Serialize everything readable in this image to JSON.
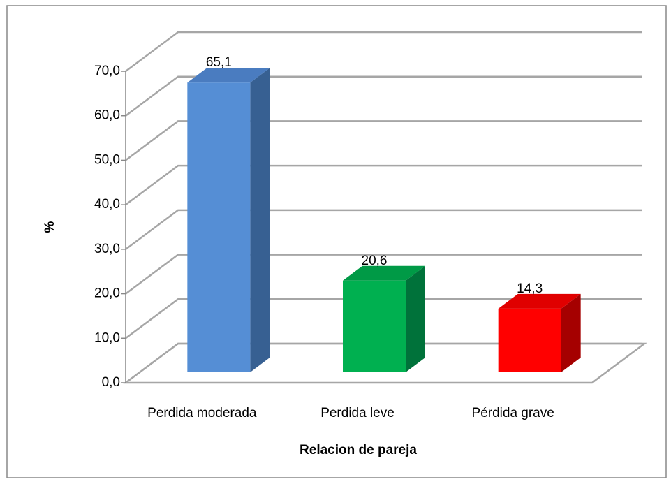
{
  "chart_data": {
    "type": "bar3d",
    "categories": [
      "Perdida moderada",
      "Perdida leve",
      "Pérdida grave"
    ],
    "values": [
      65.1,
      20.6,
      14.3
    ],
    "value_labels": [
      "65,1",
      "20,6",
      "14,3"
    ],
    "colors": [
      "#558ed5",
      "#00b050",
      "#ff0000"
    ],
    "side_colors": [
      "#376092",
      "#00723a",
      "#a50000"
    ],
    "top_colors": [
      "#4a7cc0",
      "#009a46",
      "#e00000"
    ],
    "y_label": "%",
    "x_label": "Relacion de pareja",
    "ylim": [
      0,
      70
    ],
    "yticks": [
      {
        "value": 0,
        "label": "0,0"
      },
      {
        "value": 10,
        "label": "10,0"
      },
      {
        "value": 20,
        "label": "20,0"
      },
      {
        "value": 30,
        "label": "30,0"
      },
      {
        "value": 40,
        "label": "40,0"
      },
      {
        "value": 50,
        "label": "50,0"
      },
      {
        "value": 60,
        "label": "60,0"
      },
      {
        "value": 70,
        "label": "70,0"
      }
    ],
    "grid": true
  }
}
